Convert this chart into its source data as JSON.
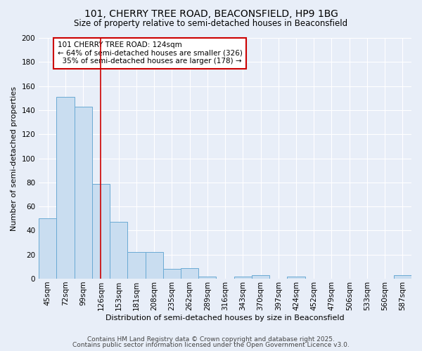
{
  "title1": "101, CHERRY TREE ROAD, BEACONSFIELD, HP9 1BG",
  "title2": "Size of property relative to semi-detached houses in Beaconsfield",
  "xlabel": "Distribution of semi-detached houses by size in Beaconsfield",
  "ylabel": "Number of semi-detached properties",
  "categories": [
    "45sqm",
    "72sqm",
    "99sqm",
    "126sqm",
    "153sqm",
    "181sqm",
    "208sqm",
    "235sqm",
    "262sqm",
    "289sqm",
    "316sqm",
    "343sqm",
    "370sqm",
    "397sqm",
    "424sqm",
    "452sqm",
    "479sqm",
    "506sqm",
    "533sqm",
    "560sqm",
    "587sqm"
  ],
  "values": [
    50,
    151,
    143,
    79,
    47,
    22,
    22,
    8,
    9,
    2,
    0,
    2,
    3,
    0,
    2,
    0,
    0,
    0,
    0,
    0,
    3
  ],
  "bar_color": "#c9ddf0",
  "bar_edge_color": "#6aaad4",
  "vline_x": 3,
  "vline_color": "#cc0000",
  "annotation_text": "101 CHERRY TREE ROAD: 124sqm\n← 64% of semi-detached houses are smaller (326)\n  35% of semi-detached houses are larger (178) →",
  "annotation_box_color": "#ffffff",
  "annotation_box_edge": "#cc0000",
  "ylim": [
    0,
    200
  ],
  "yticks": [
    0,
    20,
    40,
    60,
    80,
    100,
    120,
    140,
    160,
    180,
    200
  ],
  "footer1": "Contains HM Land Registry data © Crown copyright and database right 2025.",
  "footer2": "Contains public sector information licensed under the Open Government Licence v3.0.",
  "bg_color": "#e8eef8",
  "grid_color": "#ffffff",
  "title_fontsize": 10,
  "subtitle_fontsize": 8.5,
  "annotation_fontsize": 7.5,
  "axis_label_fontsize": 8,
  "tick_fontsize": 7.5,
  "footer_fontsize": 6.5
}
